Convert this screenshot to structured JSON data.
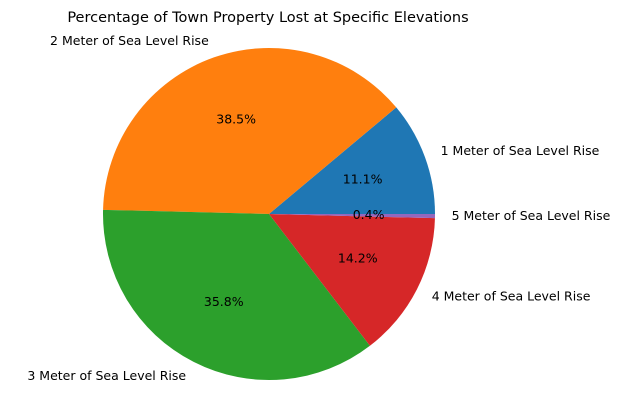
{
  "chart_data": {
    "type": "pie",
    "title": "Percentage of Town Property Lost at Specific Elevations",
    "categories": [
      "1 Meter of Sea Level Rise",
      "2 Meter of Sea Level Rise",
      "3 Meter of Sea Level Rise",
      "4 Meter of Sea Level Rise",
      "5 Meter of Sea Level Rise"
    ],
    "values": [
      11.1,
      38.5,
      35.8,
      14.2,
      0.4
    ],
    "value_labels": [
      "11.1%",
      "38.5%",
      "35.8%",
      "14.2%",
      "0.4%"
    ],
    "colors": [
      "#1f77b4",
      "#ff7f0e",
      "#2ca02c",
      "#d62728",
      "#9467bd"
    ],
    "start_angle_deg": 0,
    "direction": "counterclockwise",
    "legend": "none"
  }
}
